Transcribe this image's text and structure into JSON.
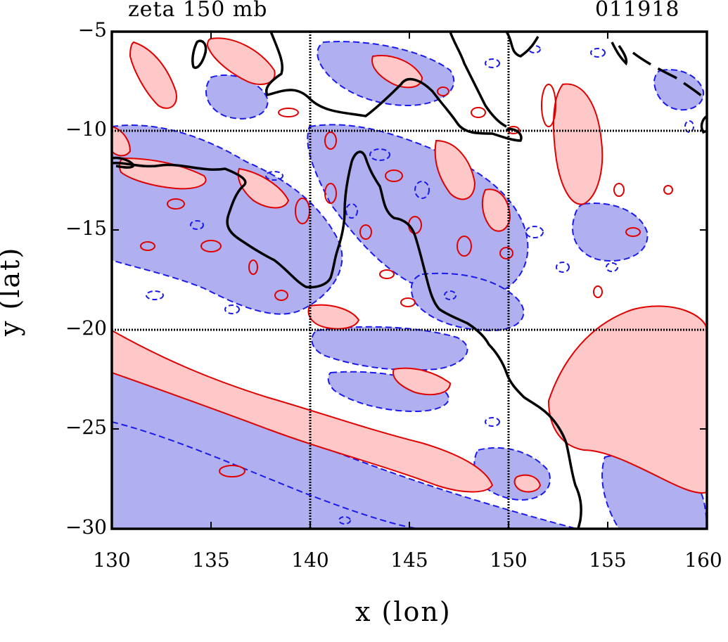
{
  "title_left": "zeta 150 mb",
  "title_right": "011918",
  "xlabel": "x (lon)",
  "ylabel": "y (lat)",
  "x_ticks": [
    "130",
    "135",
    "140",
    "145",
    "150",
    "155",
    "160"
  ],
  "y_ticks": [
    "−5",
    "−10",
    "−15",
    "−20",
    "−25",
    "−30"
  ],
  "chart_data": {
    "type": "contour-map",
    "title": "zeta 150 mb",
    "subtitle": "011918",
    "xlabel": "x (lon)",
    "ylabel": "y (lat)",
    "xlim": [
      130,
      160
    ],
    "ylim": [
      -30,
      -5
    ],
    "x_ticks": [
      130,
      135,
      140,
      145,
      150,
      155,
      160
    ],
    "y_ticks": [
      -5,
      -10,
      -15,
      -20,
      -25,
      -30
    ],
    "grid": true,
    "grid_lines_x": [
      140,
      150
    ],
    "grid_lines_y": [
      -10,
      -20
    ],
    "positive_color": "#ffc8c8",
    "positive_line": "#e00000",
    "negative_color": "#b0b0f0",
    "negative_line": "#0000dd",
    "coastline_color": "#000000"
  }
}
